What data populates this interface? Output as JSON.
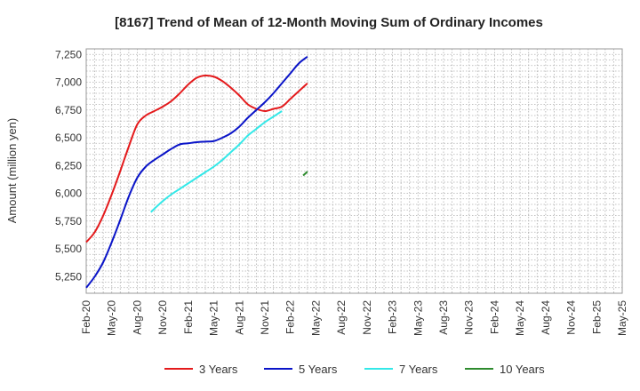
{
  "chart_data": {
    "type": "line",
    "title": "[8167]  Trend of Mean of 12-Month Moving Sum of Ordinary Incomes",
    "xlabel": "",
    "ylabel": "Amount (million yen)",
    "ylim": [
      5100,
      7300
    ],
    "y_ticks": [
      5250,
      5500,
      5750,
      6000,
      6250,
      6500,
      6750,
      7000,
      7250
    ],
    "y_tick_labels": [
      "5,250",
      "5,500",
      "5,750",
      "6,000",
      "6,250",
      "6,500",
      "6,750",
      "7,000",
      "7,250"
    ],
    "x_tick_labels": [
      "Feb-20",
      "May-20",
      "Aug-20",
      "Nov-20",
      "Feb-21",
      "May-21",
      "Aug-21",
      "Nov-21",
      "Feb-22",
      "May-22",
      "Aug-22",
      "Nov-22",
      "Feb-23",
      "May-23",
      "Aug-23",
      "Nov-23",
      "Feb-24",
      "May-24",
      "Aug-24",
      "Nov-24",
      "Feb-25",
      "May-25"
    ],
    "grid": true,
    "legend_position": "bottom",
    "series": [
      {
        "name": "3 Years",
        "color": "#e41a1c",
        "points": [
          [
            0,
            5560
          ],
          [
            1,
            5650
          ],
          [
            2,
            5800
          ],
          [
            3,
            5990
          ],
          [
            4,
            6200
          ],
          [
            5,
            6420
          ],
          [
            6,
            6620
          ],
          [
            7,
            6700
          ],
          [
            8,
            6740
          ],
          [
            9,
            6780
          ],
          [
            10,
            6830
          ],
          [
            11,
            6900
          ],
          [
            12,
            6980
          ],
          [
            13,
            7040
          ],
          [
            14,
            7060
          ],
          [
            15,
            7050
          ],
          [
            16,
            7010
          ],
          [
            17,
            6950
          ],
          [
            18,
            6880
          ],
          [
            19,
            6800
          ],
          [
            20,
            6760
          ],
          [
            21,
            6740
          ],
          [
            22,
            6760
          ],
          [
            23,
            6780
          ],
          [
            24,
            6850
          ],
          [
            25,
            6920
          ],
          [
            26,
            6990
          ]
        ]
      },
      {
        "name": "5 Years",
        "color": "#0a14c8",
        "points": [
          [
            0,
            5150
          ],
          [
            1,
            5250
          ],
          [
            2,
            5380
          ],
          [
            3,
            5560
          ],
          [
            4,
            5760
          ],
          [
            5,
            5970
          ],
          [
            6,
            6140
          ],
          [
            7,
            6240
          ],
          [
            8,
            6300
          ],
          [
            9,
            6350
          ],
          [
            10,
            6400
          ],
          [
            11,
            6440
          ],
          [
            12,
            6450
          ],
          [
            13,
            6460
          ],
          [
            14,
            6465
          ],
          [
            15,
            6470
          ],
          [
            16,
            6500
          ],
          [
            17,
            6540
          ],
          [
            18,
            6600
          ],
          [
            19,
            6680
          ],
          [
            20,
            6750
          ],
          [
            21,
            6820
          ],
          [
            22,
            6900
          ],
          [
            23,
            6990
          ],
          [
            24,
            7080
          ],
          [
            25,
            7170
          ],
          [
            26,
            7230
          ]
        ]
      },
      {
        "name": "7 Years",
        "color": "#33e8e8",
        "points": [
          [
            7.6,
            5830
          ],
          [
            8,
            5860
          ],
          [
            9,
            5930
          ],
          [
            10,
            5990
          ],
          [
            11,
            6040
          ],
          [
            12,
            6090
          ],
          [
            13,
            6140
          ],
          [
            14,
            6190
          ],
          [
            15,
            6240
          ],
          [
            16,
            6300
          ],
          [
            17,
            6370
          ],
          [
            18,
            6440
          ],
          [
            19,
            6520
          ],
          [
            20,
            6580
          ],
          [
            21,
            6640
          ],
          [
            22,
            6690
          ],
          [
            23,
            6740
          ]
        ]
      },
      {
        "name": "10 Years",
        "color": "#2e8b2e",
        "points": [
          [
            25.5,
            6160
          ],
          [
            26,
            6195
          ]
        ]
      }
    ]
  }
}
